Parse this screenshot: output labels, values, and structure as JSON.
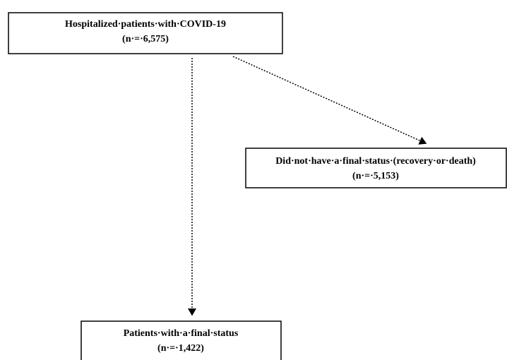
{
  "nodes": [
    {
      "label": "Hospitalized·patients·with·COVID-19",
      "count": "(n·=·6,575)"
    },
    {
      "label": "Did·not·have·a·final·status·(recovery·or·death)",
      "count": "(n·=·5,153)"
    },
    {
      "label": "Patients·with·a·final·status",
      "count": "(n·=·1,422)"
    }
  ]
}
